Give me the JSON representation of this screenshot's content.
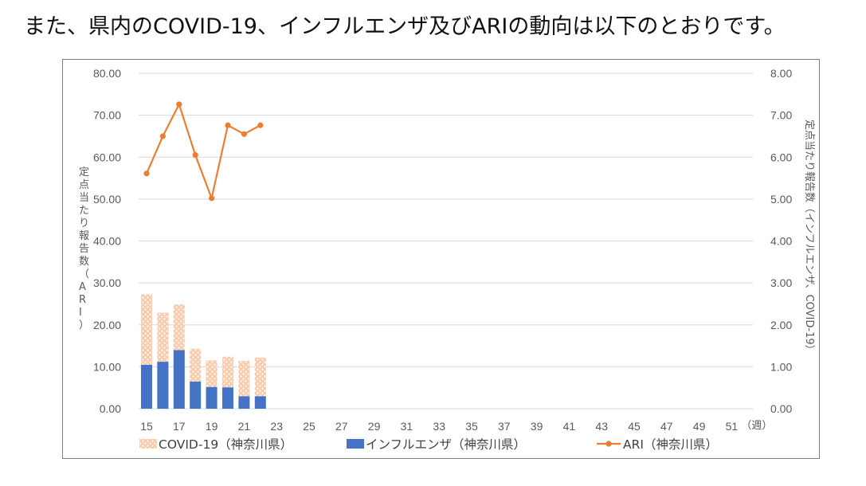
{
  "heading": "また、県内のCOVID-19、インフルエンザ及びARIの動向は以下のとおりです。",
  "chart_data": {
    "type": "bar",
    "combo": "stacked bar + line (dual axis)",
    "x_ticks": [
      "15",
      "17",
      "19",
      "21",
      "23",
      "25",
      "27",
      "29",
      "31",
      "33",
      "35",
      "37",
      "39",
      "41",
      "43",
      "45",
      "47",
      "49",
      "51"
    ],
    "x_unit": "（週）",
    "weeks": [
      15,
      16,
      17,
      18,
      19,
      20,
      21,
      22
    ],
    "y_left": {
      "label": "定点当たり報告数（ARI）",
      "ylim": [
        0,
        80
      ],
      "ticks": [
        "0.00",
        "10.00",
        "20.00",
        "30.00",
        "40.00",
        "50.00",
        "60.00",
        "70.00",
        "80.00"
      ]
    },
    "y_right": {
      "label": "定点当たり報告数（インフルエンザ、COVID-19）",
      "ylim": [
        0,
        8
      ],
      "ticks": [
        "0.00",
        "1.00",
        "2.00",
        "3.00",
        "4.00",
        "5.00",
        "6.00",
        "7.00",
        "8.00"
      ]
    },
    "grid": true,
    "legend_position": "bottom",
    "series": [
      {
        "name": "COVID-19（神奈川県）",
        "kind": "bar-stacked",
        "axis": "right",
        "color": "#f4b183",
        "pattern": "dots",
        "values": [
          1.68,
          1.17,
          1.09,
          0.78,
          0.63,
          0.73,
          0.84,
          0.92
        ]
      },
      {
        "name": "インフルエンザ（神奈川県）",
        "kind": "bar-stacked",
        "axis": "right",
        "color": "#4472c4",
        "values": [
          1.05,
          1.12,
          1.4,
          0.65,
          0.52,
          0.51,
          0.3,
          0.3
        ]
      },
      {
        "name": "ARI（神奈川県）",
        "kind": "line",
        "axis": "left",
        "color": "#ed7d31",
        "values": [
          56.1,
          65.0,
          72.6,
          60.5,
          50.2,
          67.6,
          65.5,
          67.6
        ]
      }
    ]
  }
}
